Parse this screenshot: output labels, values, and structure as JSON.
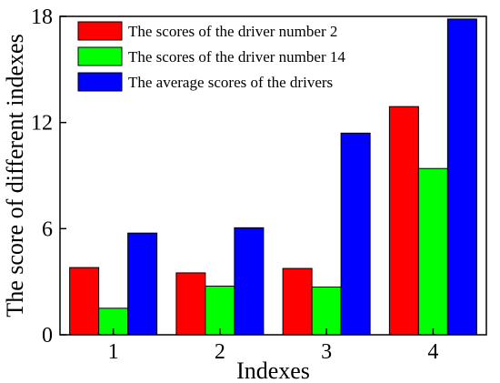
{
  "chart_data": {
    "type": "bar",
    "xlabel": "Indexes",
    "ylabel": "The score of different indexes",
    "categories": [
      "1",
      "2",
      "3",
      "4"
    ],
    "ylim": [
      0,
      18
    ],
    "yticks": [
      0,
      6,
      12,
      18
    ],
    "grid": false,
    "legend_position": "top-left",
    "series": [
      {
        "name": "The scores of the driver number 2",
        "color": "#ff0000",
        "values": [
          3.8,
          3.5,
          3.75,
          12.9
        ]
      },
      {
        "name": "The scores of the driver number 14",
        "color": "#00ff00",
        "values": [
          1.5,
          2.75,
          2.7,
          9.4
        ]
      },
      {
        "name": "The average scores of the drivers",
        "color": "#0000ff",
        "values": [
          5.75,
          6.05,
          11.4,
          17.85
        ]
      }
    ]
  }
}
